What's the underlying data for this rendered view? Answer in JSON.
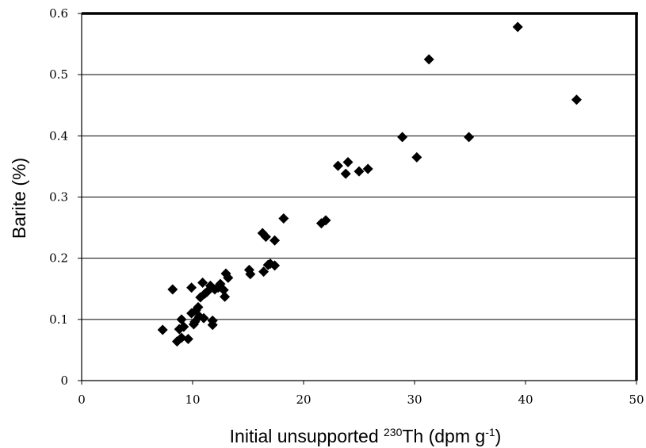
{
  "chart_data": {
    "type": "scatter",
    "xlabel": {
      "pre": "Initial unsupported ",
      "sup1": "230",
      "mid": "Th (dpm g",
      "sup2": "-1",
      "post": ")"
    },
    "ylabel": "Barite (%)",
    "xlim": [
      0,
      50
    ],
    "ylim": [
      0,
      0.6
    ],
    "xticks": [
      0,
      10,
      20,
      30,
      40,
      50
    ],
    "yticks": [
      0,
      0.1,
      0.2,
      0.3,
      0.4,
      0.5,
      0.6
    ],
    "ytick_labels": [
      "0",
      "0.1",
      "0.2",
      "0.3",
      "0.4",
      "0.5",
      "0.6"
    ],
    "xtick_labels": [
      "0",
      "10",
      "20",
      "30",
      "40",
      "50"
    ],
    "grid": {
      "horizontal": true,
      "vertical": false
    },
    "marker": "diamond",
    "marker_color": "#000000",
    "points": [
      [
        7.3,
        0.083
      ],
      [
        8.2,
        0.149
      ],
      [
        8.6,
        0.064
      ],
      [
        8.8,
        0.084
      ],
      [
        9.0,
        0.07
      ],
      [
        9.0,
        0.1
      ],
      [
        9.2,
        0.088
      ],
      [
        9.6,
        0.068
      ],
      [
        9.9,
        0.152
      ],
      [
        9.9,
        0.11
      ],
      [
        10.1,
        0.092
      ],
      [
        10.2,
        0.096
      ],
      [
        10.3,
        0.115
      ],
      [
        10.5,
        0.12
      ],
      [
        10.6,
        0.105
      ],
      [
        10.7,
        0.136
      ],
      [
        10.9,
        0.16
      ],
      [
        11.0,
        0.102
      ],
      [
        11.1,
        0.142
      ],
      [
        11.3,
        0.145
      ],
      [
        11.6,
        0.155
      ],
      [
        11.8,
        0.098
      ],
      [
        11.8,
        0.091
      ],
      [
        12.0,
        0.149
      ],
      [
        12.3,
        0.152
      ],
      [
        12.5,
        0.158
      ],
      [
        12.8,
        0.148
      ],
      [
        12.9,
        0.137
      ],
      [
        13.0,
        0.175
      ],
      [
        13.2,
        0.168
      ],
      [
        15.1,
        0.181
      ],
      [
        15.2,
        0.174
      ],
      [
        16.3,
        0.241
      ],
      [
        16.4,
        0.178
      ],
      [
        16.6,
        0.235
      ],
      [
        16.8,
        0.189
      ],
      [
        17.0,
        0.191
      ],
      [
        17.4,
        0.188
      ],
      [
        17.4,
        0.229
      ],
      [
        18.2,
        0.265
      ],
      [
        21.6,
        0.257
      ],
      [
        22.0,
        0.262
      ],
      [
        23.1,
        0.351
      ],
      [
        23.8,
        0.338
      ],
      [
        24.0,
        0.357
      ],
      [
        25.0,
        0.342
      ],
      [
        25.8,
        0.346
      ],
      [
        28.9,
        0.398
      ],
      [
        30.2,
        0.365
      ],
      [
        31.3,
        0.525
      ],
      [
        34.9,
        0.398
      ],
      [
        39.3,
        0.578
      ],
      [
        44.6,
        0.459
      ]
    ]
  }
}
